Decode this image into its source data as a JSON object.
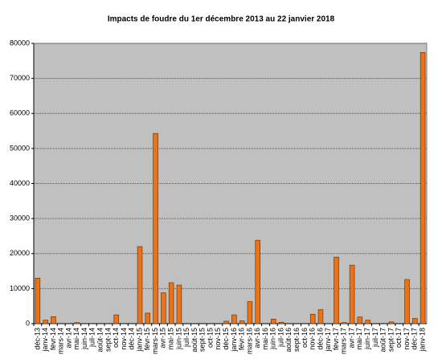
{
  "chart_data": {
    "type": "bar",
    "title": "Impacts de foudre du 1er décembre 2013 au 22 janvier 2018",
    "categories": [
      "déc-13",
      "janv-14",
      "févr-14",
      "mars-14",
      "avr-14",
      "mai-14",
      "juin-14",
      "juil-14",
      "août-14",
      "sept-14",
      "oct-14",
      "nov-14",
      "déc-14",
      "janv-15",
      "févr-15",
      "mars-15",
      "avr-15",
      "mai-15",
      "juin-15",
      "juil-15",
      "août-15",
      "sept-15",
      "oct-15",
      "nov-15",
      "déc-15",
      "janv-16",
      "févr-16",
      "mars-16",
      "avr-16",
      "mai-16",
      "juin-16",
      "juil-16",
      "août-16",
      "sept-16",
      "oct-16",
      "nov-16",
      "déc-16",
      "janv-17",
      "févr-17",
      "mars-17",
      "avr-17",
      "mai-17",
      "juin-17",
      "juil-17",
      "août-17",
      "sept-17",
      "oct-17",
      "nov-17",
      "déc-17",
      "janv-18"
    ],
    "values": [
      13000,
      1000,
      2000,
      0,
      0,
      300,
      0,
      0,
      0,
      0,
      2500,
      0,
      0,
      22000,
      3000,
      54300,
      8800,
      11700,
      11000,
      0,
      0,
      0,
      0,
      0,
      700,
      2500,
      800,
      6300,
      23800,
      0,
      1300,
      400,
      0,
      0,
      0,
      2700,
      4000,
      0,
      19000,
      300,
      16700,
      1900,
      1000,
      0,
      0,
      500,
      0,
      12600,
      1500,
      77400
    ],
    "color": "#e8731a",
    "ylim": [
      0,
      80000
    ],
    "yticks": [
      0,
      10000,
      20000,
      30000,
      40000,
      50000,
      60000,
      70000,
      80000
    ],
    "grid": true
  }
}
